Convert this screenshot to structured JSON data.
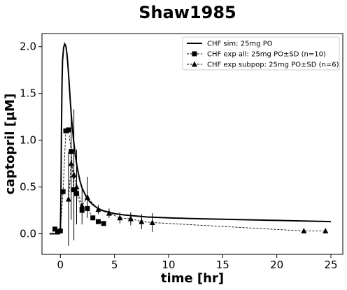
{
  "chart_data": {
    "type": "line",
    "title": "Shaw1985",
    "xlabel": "time [hr]",
    "ylabel": "captopril [µM]",
    "xlim": [
      -1.7,
      26.1
    ],
    "ylim": [
      -0.22,
      2.14
    ],
    "xticks": [
      0,
      5,
      10,
      15,
      20,
      25
    ],
    "yticks": [
      0.0,
      0.5,
      1.0,
      1.5,
      2.0
    ],
    "xtick_labels": [
      "0",
      "5",
      "10",
      "15",
      "20",
      "25"
    ],
    "ytick_labels": [
      "0.0",
      "0.5",
      "1.0",
      "1.5",
      "2.0"
    ],
    "grid": false,
    "legend_position": "top-right",
    "series": [
      {
        "name": "CHF sim: 25mg PO",
        "style": "solid-line",
        "color": "#000000",
        "x": [
          -1.0,
          -0.1,
          0.0,
          0.05,
          0.1,
          0.15,
          0.2,
          0.3,
          0.4,
          0.5,
          0.6,
          0.7,
          0.8,
          0.9,
          1.0,
          1.2,
          1.4,
          1.6,
          1.8,
          2.0,
          2.5,
          3.0,
          3.5,
          4.0,
          4.5,
          5.0,
          6.0,
          7.0,
          8.0,
          10.0,
          12.0,
          15.0,
          20.0,
          25.0
        ],
        "y": [
          0.0,
          0.0,
          0.02,
          0.4,
          1.1,
          1.6,
          1.85,
          1.99,
          2.03,
          2.01,
          1.93,
          1.8,
          1.63,
          1.45,
          1.28,
          1.02,
          0.82,
          0.68,
          0.57,
          0.49,
          0.37,
          0.31,
          0.27,
          0.245,
          0.23,
          0.215,
          0.2,
          0.19,
          0.18,
          0.17,
          0.163,
          0.155,
          0.143,
          0.13
        ]
      },
      {
        "name": "CHF exp all: 25mg PO±SD (n=10)",
        "style": "dashed-square",
        "color": "#000000",
        "x": [
          -0.5,
          -0.25,
          0.0,
          0.25,
          0.5,
          0.75,
          1.0,
          1.25,
          1.5,
          2.0,
          2.5,
          3.0,
          3.5,
          4.0
        ],
        "y": [
          0.05,
          0.02,
          0.03,
          0.45,
          1.1,
          1.11,
          0.88,
          0.47,
          0.43,
          0.25,
          0.27,
          0.17,
          0.13,
          0.11
        ],
        "sd": [
          0.0,
          0.0,
          0.0,
          0.0,
          0.0,
          0.0,
          0.0,
          0.0,
          0.0,
          0.0,
          0.0,
          0.0,
          0.0,
          0.0
        ]
      },
      {
        "name": "CHF exp subpop: 25mg PO±SD (n=6)",
        "style": "dashed-triangle",
        "color": "#000000",
        "x": [
          0.75,
          1.0,
          1.25,
          1.5,
          2.0,
          2.5,
          3.5,
          4.5,
          5.5,
          6.5,
          7.5,
          8.5,
          22.5,
          24.5
        ],
        "y": [
          0.37,
          0.75,
          0.63,
          0.5,
          0.3,
          0.39,
          0.26,
          0.22,
          0.17,
          0.16,
          0.13,
          0.12,
          0.03,
          0.03
        ],
        "sd": [
          0.5,
          0.6,
          0.7,
          0.4,
          0.2,
          0.22,
          0.05,
          0.05,
          0.06,
          0.07,
          0.08,
          0.1,
          0.0,
          0.0
        ]
      }
    ]
  }
}
